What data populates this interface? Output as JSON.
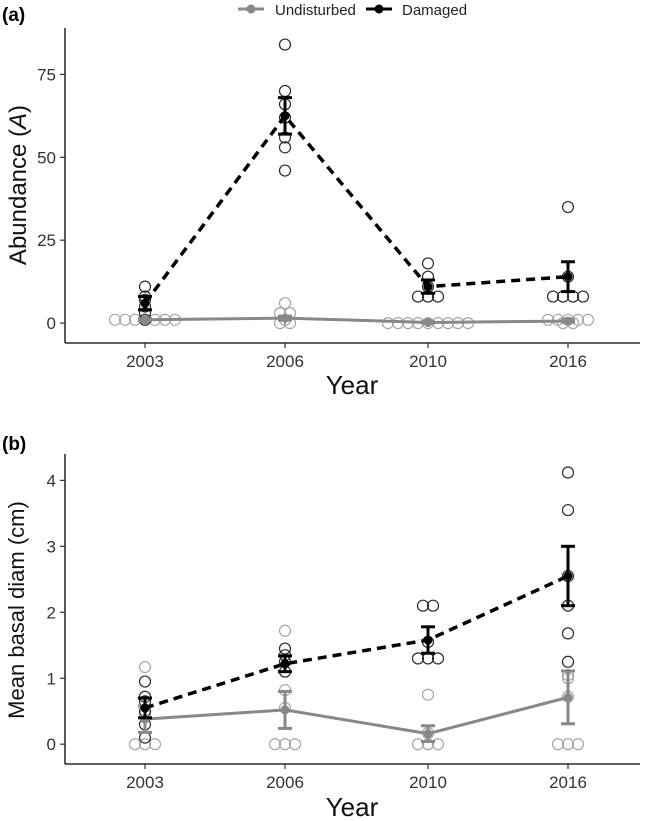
{
  "legend": {
    "items": [
      {
        "label": "Undisturbed",
        "color": "#888888",
        "linestyle": "solid"
      },
      {
        "label": "Damaged",
        "color": "#000000",
        "linestyle": "dashed"
      }
    ]
  },
  "chart_data": [
    {
      "type": "line",
      "panel_label": "(a)",
      "xlabel": "Year",
      "ylabel_main": "Abundance (",
      "ylabel_italic": "A",
      "ylabel_close": ")",
      "categories": [
        "2003",
        "2006",
        "2010",
        "2016"
      ],
      "yticks": [
        "0",
        "25",
        "50",
        "75"
      ],
      "ylim": [
        -6,
        89
      ],
      "series": [
        {
          "name": "Undisturbed",
          "color": "#888888",
          "dashed": false,
          "means": [
            1.0,
            1.5,
            0.2,
            0.6
          ],
          "errors": [
            0.3,
            0.6,
            0.2,
            0.3
          ],
          "points": [
            [
              1,
              1,
              1,
              1,
              1,
              1,
              1
            ],
            [
              0,
              0,
              1,
              3,
              3,
              6
            ],
            [
              0,
              0,
              0,
              0,
              0,
              0,
              0,
              0,
              0
            ],
            [
              0,
              0,
              1,
              1,
              1,
              1,
              1
            ]
          ]
        },
        {
          "name": "Damaged",
          "color": "#000000",
          "dashed": true,
          "means": [
            6.0,
            62.5,
            11.0,
            14.0
          ],
          "errors": [
            2.0,
            5.5,
            2.0,
            4.5
          ],
          "points": [
            [
              1,
              3,
              5,
              7,
              8,
              11
            ],
            [
              46,
              53,
              56,
              62,
              66,
              70,
              84
            ],
            [
              8,
              8,
              8,
              11,
              14,
              18
            ],
            [
              8,
              8,
              8,
              8,
              14,
              35
            ]
          ]
        }
      ]
    },
    {
      "type": "line",
      "panel_label": "(b)",
      "xlabel": "Year",
      "ylabel_main": "Mean basal diam (cm)",
      "ylabel_italic": "",
      "ylabel_close": "",
      "categories": [
        "2003",
        "2006",
        "2010",
        "2016"
      ],
      "yticks": [
        "0",
        "1",
        "2",
        "3",
        "4"
      ],
      "ylim": [
        -0.3,
        4.4
      ],
      "series": [
        {
          "name": "Undisturbed",
          "color": "#888888",
          "dashed": false,
          "means": [
            0.38,
            0.52,
            0.16,
            0.71
          ],
          "errors": [
            0.2,
            0.28,
            0.12,
            0.4
          ],
          "points": [
            [
              0,
              0,
              0,
              0.45,
              1.17
            ],
            [
              0,
              0,
              0,
              0.55,
              0.82,
              1.72
            ],
            [
              0,
              0,
              0,
              0.17,
              0.75
            ],
            [
              0,
              0,
              0,
              0.72,
              1.0,
              1.05
            ]
          ]
        },
        {
          "name": "Damaged",
          "color": "#000000",
          "dashed": true,
          "means": [
            0.55,
            1.22,
            1.58,
            2.55
          ],
          "errors": [
            0.15,
            0.12,
            0.2,
            0.45
          ],
          "points": [
            [
              0.1,
              0.3,
              0.5,
              0.65,
              0.72,
              0.95
            ],
            [
              1.1,
              1.25,
              1.35,
              1.45
            ],
            [
              1.3,
              1.3,
              1.3,
              1.55,
              2.1,
              2.1
            ],
            [
              1.25,
              1.68,
              2.1,
              2.55,
              3.55,
              4.12
            ]
          ]
        }
      ]
    }
  ]
}
